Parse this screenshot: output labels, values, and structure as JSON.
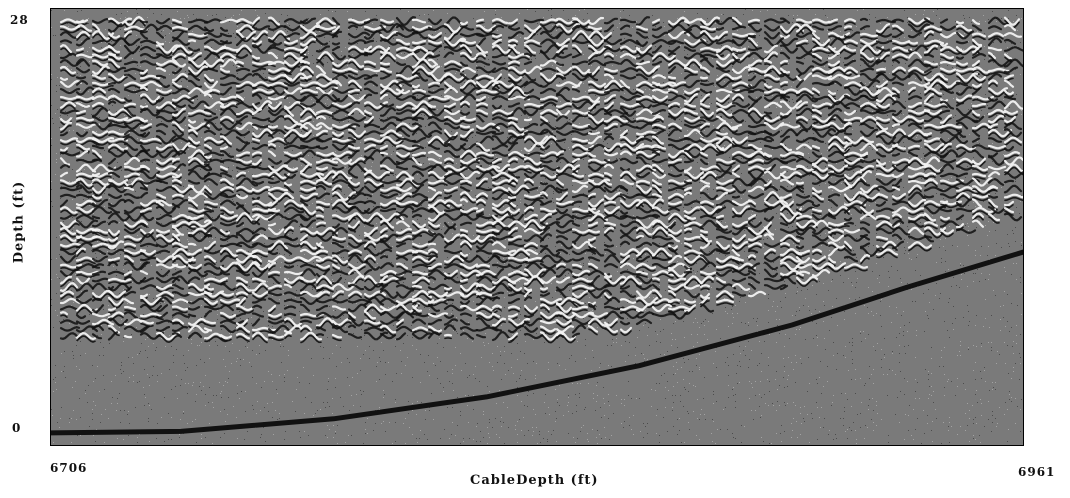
{
  "chart_data": {
    "type": "heatmap",
    "title": "",
    "xlabel": "CableDepth (ft)",
    "ylabel": "Depth (ft)",
    "x_ticks": [
      "6706",
      "6961"
    ],
    "y_ticks": [
      "28",
      "0"
    ],
    "xlim": [
      6706,
      6961
    ],
    "ylim": [
      0,
      28
    ],
    "grid": false,
    "legend": "none",
    "colors": {
      "background": "#7a7a7a",
      "bright_band": "#f2f2f2",
      "dark_band": "#111111",
      "curve": "#111111"
    },
    "overlay_curve": {
      "name": "",
      "x": [
        6706,
        6740,
        6780,
        6820,
        6860,
        6900,
        6930,
        6961
      ],
      "y": [
        0.9,
        1.0,
        1.8,
        3.2,
        5.2,
        7.8,
        10.2,
        12.5
      ]
    }
  }
}
